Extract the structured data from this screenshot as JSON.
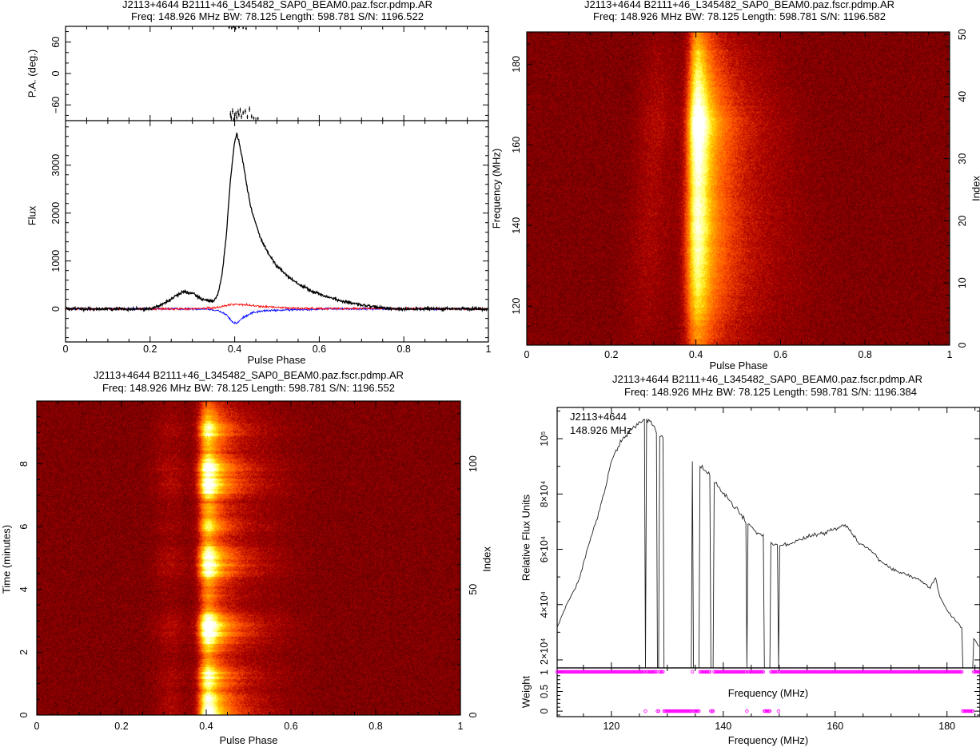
{
  "chart_data": [
    {
      "type": "line",
      "title": "J2113+4644  B2111+46_L345482_SAP0_BEAM0.paz.fscr.pdmp.AR",
      "subtitle": "Freq: 148.926 MHz BW: 78.125 Length: 598.781 S/N: 1196.522",
      "xlabel": "Pulse Phase",
      "ylabel": "Flux",
      "pa_ylabel": "P.A. (deg.)",
      "xlim": [
        0,
        1
      ],
      "ylim": [
        -690,
        3930
      ],
      "pa_ylim": [
        -90,
        90
      ],
      "xticks": [
        "0",
        "0.2",
        "0.4",
        "0.6",
        "0.8",
        "1"
      ],
      "yticks": [
        "0",
        "1000",
        "2000",
        "3000"
      ],
      "pa_yticks": [
        "60",
        "0",
        "−60"
      ],
      "series": [
        {
          "name": "Total intensity",
          "color": "#000000",
          "x": [
            0,
            0.2,
            0.22,
            0.24,
            0.26,
            0.28,
            0.3,
            0.32,
            0.34,
            0.35,
            0.36,
            0.37,
            0.38,
            0.39,
            0.4,
            0.405,
            0.41,
            0.42,
            0.43,
            0.44,
            0.46,
            0.48,
            0.5,
            0.52,
            0.54,
            0.56,
            0.58,
            0.6,
            0.62,
            0.64,
            0.66,
            0.68,
            0.7,
            0.72,
            0.74,
            0.76,
            0.8,
            1
          ],
          "y": [
            0,
            0,
            60,
            150,
            270,
            360,
            330,
            220,
            160,
            170,
            300,
            700,
            1500,
            2700,
            3500,
            3650,
            3500,
            3050,
            2500,
            2050,
            1500,
            1150,
            900,
            720,
            580,
            470,
            380,
            310,
            250,
            200,
            150,
            110,
            80,
            55,
            30,
            12,
            0,
            0
          ]
        },
        {
          "name": "Linear polarization",
          "color": "#ff0000",
          "x": [
            0,
            0.3,
            0.35,
            0.38,
            0.4,
            0.42,
            0.45,
            0.5,
            0.55,
            1
          ],
          "y": [
            0,
            0,
            20,
            70,
            100,
            90,
            60,
            30,
            10,
            0
          ]
        },
        {
          "name": "Circular polarization",
          "color": "#0000ff",
          "x": [
            0,
            0.33,
            0.36,
            0.38,
            0.395,
            0.405,
            0.42,
            0.44,
            0.47,
            0.5,
            0.55,
            0.6,
            1
          ],
          "y": [
            0,
            0,
            -30,
            -120,
            -280,
            -300,
            -180,
            -80,
            -40,
            -30,
            -15,
            0,
            0
          ]
        }
      ],
      "pa_points": [
        [
          0.39,
          -78,
          6
        ],
        [
          0.392,
          -85,
          5
        ],
        [
          0.395,
          -72,
          6
        ],
        [
          0.398,
          -88,
          4
        ],
        [
          0.4,
          -80,
          5
        ],
        [
          0.403,
          -76,
          4
        ],
        [
          0.405,
          -84,
          4
        ],
        [
          0.408,
          -73,
          5
        ],
        [
          0.41,
          -79,
          4
        ],
        [
          0.413,
          -70,
          5
        ],
        [
          0.416,
          -82,
          5
        ],
        [
          0.42,
          -75,
          4
        ],
        [
          0.425,
          -72,
          5
        ],
        [
          0.43,
          -83,
          4
        ],
        [
          0.435,
          -68,
          5
        ],
        [
          0.44,
          -82,
          4
        ],
        [
          0.445,
          -85,
          3
        ],
        [
          0.455,
          -86,
          3
        ],
        [
          0.387,
          88,
          3
        ],
        [
          0.393,
          87,
          3
        ],
        [
          0.397,
          89,
          2
        ],
        [
          0.402,
          86,
          3
        ],
        [
          0.41,
          88,
          2
        ],
        [
          0.42,
          87,
          2
        ],
        [
          0.427,
          86,
          3
        ]
      ]
    },
    {
      "type": "heatmap",
      "title": "J2113+4644  B2111+46_L345482_SAP0_BEAM0.paz.fscr.pdmp.AR",
      "subtitle": "Freq: 148.926 MHz BW: 78.125 Length: 598.781 S/N: 1196.582",
      "xlabel": "Pulse Phase",
      "ylabel": "Frequency (MHz)",
      "y2label": "Index",
      "xlim": [
        0,
        1
      ],
      "ylim": [
        110.3,
        188
      ],
      "y2lim": [
        0,
        50.4
      ],
      "xticks": [
        "0",
        "0.2",
        "0.4",
        "0.6",
        "0.8",
        "1"
      ],
      "yticks": [
        "120",
        "140",
        "160",
        "180"
      ],
      "y2ticks": [
        "0",
        "10",
        "20",
        "30",
        "40",
        "50"
      ],
      "channel_gain": [
        0.45,
        0.5,
        0.5,
        0.55,
        0.6,
        0.65,
        0.7,
        0.7,
        0.75,
        0.8,
        0.8,
        0.85,
        0.85,
        0.9,
        0.9,
        0.95,
        0.9,
        0.95,
        1,
        1,
        0.95,
        1,
        1,
        1,
        0.95,
        0.95,
        1,
        1,
        1.05,
        1.05,
        1.1,
        1.1,
        1.15,
        1.2,
        1.25,
        1.3,
        1.3,
        1.2,
        1.15,
        1.05,
        1.0,
        0.95,
        0.9,
        0.85,
        0.8,
        0.75,
        0.7,
        0.7,
        0.6,
        0.55,
        0.5
      ]
    },
    {
      "type": "heatmap",
      "title": "J2113+4644  B2111+46_L345482_SAP0_BEAM0.paz.fscr.pdmp.AR",
      "subtitle": "Freq: 148.926 MHz BW: 78.125 Length: 598.781 S/N: 1196.552",
      "xlabel": "Pulse Phase",
      "ylabel": "Time (minutes)",
      "y2label": "Index",
      "xlim": [
        0,
        1
      ],
      "ylim": [
        0,
        10
      ],
      "y2lim": [
        0,
        125
      ],
      "xticks": [
        "0",
        "0.2",
        "0.4",
        "0.6",
        "0.8",
        "1"
      ],
      "yticks": [
        "0",
        "2",
        "4",
        "6",
        "8"
      ],
      "y2ticks": [
        "0",
        "50",
        "100"
      ],
      "time_gain_step_minutes": 0.25,
      "time_gain": [
        1.1,
        1.0,
        0.9,
        0.6,
        0.9,
        1.0,
        0.7,
        0.4,
        0.6,
        0.9,
        1.1,
        1.2,
        1.0,
        0.6,
        0.4,
        0.5,
        0.4,
        0.6,
        1.0,
        1.1,
        1.0,
        0.8,
        0.4,
        0.6,
        0.8,
        0.5,
        0.6,
        0.4,
        0.9,
        1.1,
        1.0,
        1.1,
        0.9,
        0.6,
        0.5,
        0.7,
        1.0,
        0.8,
        0.5,
        0.4,
        0.3
      ]
    },
    {
      "type": "line",
      "title": "J2113+4644  B2111+46_L345482_SAP0_BEAM0.paz.fscr.pdmp.AR",
      "subtitle": "Freq: 148.926 MHz BW: 78.125 Length: 598.781 S/N: 1196.384",
      "annotation": [
        "J2113+4644",
        "148.926 MHz"
      ],
      "xlabel": "Frequency (MHz)",
      "ylabel": "Relative Flux Units",
      "weight_ylabel": "Weight",
      "weight_xlabel": "Frequency (MHz)",
      "xlim": [
        110.3,
        185.9
      ],
      "ylim": [
        17100,
        111300
      ],
      "weight_ylim": [
        -0.14,
        1.1
      ],
      "xticks": [
        "120",
        "140",
        "160",
        "180"
      ],
      "yticks": [
        "2×10⁴",
        "4×10⁴",
        "6×10⁴",
        "8×10⁴",
        "10⁵"
      ],
      "weight_yticks": [
        "0",
        "0.5",
        "1"
      ],
      "bandpass": {
        "x": [
          110.3,
          112,
          114,
          116,
          118,
          120,
          122,
          124,
          126,
          127,
          128,
          129,
          134,
          136,
          137,
          139,
          141,
          143,
          144,
          146,
          147,
          149,
          150,
          152,
          155,
          158,
          160,
          162,
          164,
          166,
          168,
          170,
          172,
          175,
          177,
          178,
          178.5,
          180,
          182,
          182.8,
          184.7,
          186
        ],
        "y": [
          32000,
          40000,
          48000,
          62000,
          75000,
          92000,
          100000,
          104000,
          107000,
          106000,
          103000,
          100000,
          92000,
          90000,
          88000,
          83000,
          78000,
          73000,
          70000,
          66000,
          65000,
          62000,
          61500,
          62000,
          64500,
          66000,
          67500,
          68500,
          63000,
          60000,
          56000,
          53000,
          51500,
          49000,
          46000,
          50000,
          44000,
          38000,
          33000,
          31000,
          28000,
          24000
        ]
      },
      "zapped_ranges_mhz": [
        [
          125.9,
          126.1
        ],
        [
          128.1,
          128.5
        ],
        [
          129.3,
          134.3
        ],
        [
          134.5,
          135.8
        ],
        [
          137.6,
          138.2
        ],
        [
          144.1,
          144.3
        ],
        [
          147.2,
          148.5
        ],
        [
          149.7,
          149.9
        ],
        [
          182.7,
          184.6
        ]
      ],
      "line_color": "#000000",
      "weight_marker_color": "#ff00ff"
    }
  ]
}
